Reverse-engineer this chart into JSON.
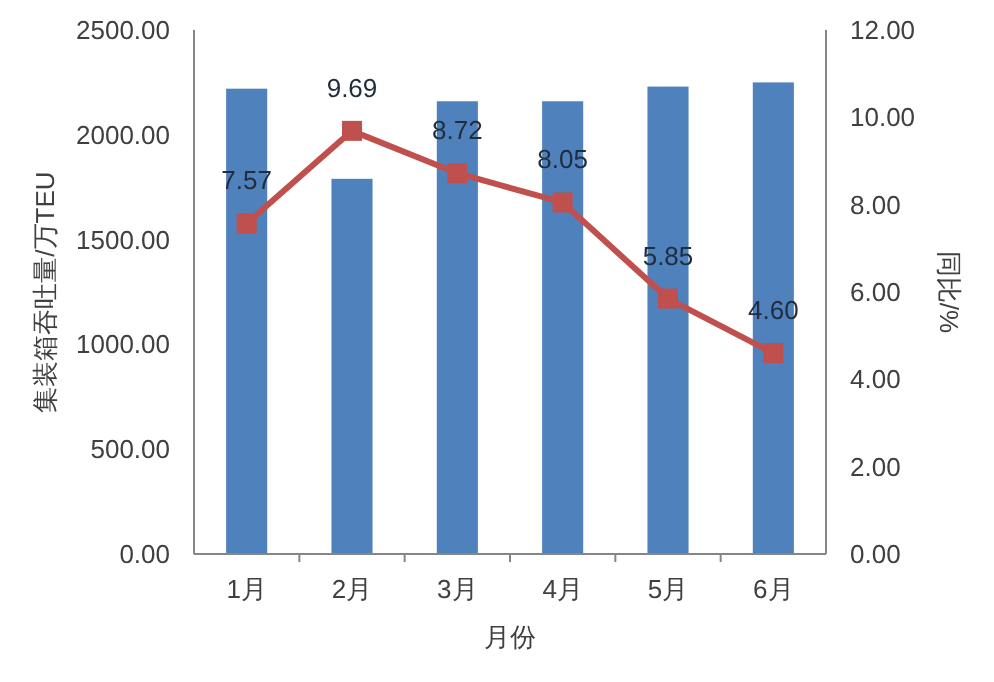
{
  "chart_data": {
    "type": "bar",
    "xlabel": "月份",
    "ylabel": "集装箱吞吐量/万TEU",
    "y2label": "同比/%",
    "categories": [
      "1月",
      "2月",
      "3月",
      "4月",
      "5月",
      "6月"
    ],
    "series": [
      {
        "color": "#4f81bd",
        "values": [
          2220,
          1790,
          2160,
          2160,
          2230,
          2250
        ]
      },
      {
        "type": "line",
        "axis": "y2",
        "color": "#c0504d",
        "marker": "square",
        "values": [
          7.57,
          9.69,
          8.72,
          8.05,
          5.85,
          4.6
        ],
        "value_labels": [
          "7.57",
          "9.69",
          "8.72",
          "8.05",
          "5.85",
          "4.60"
        ]
      }
    ],
    "ylim": [
      0,
      2500
    ],
    "yticks": [
      {
        "value": 0,
        "label": "0.00"
      },
      {
        "value": 500,
        "label": "500.00"
      },
      {
        "value": 1000,
        "label": "1000.00"
      },
      {
        "value": 1500,
        "label": "1500.00"
      },
      {
        "value": 2000,
        "label": "2000.00"
      },
      {
        "value": 2500,
        "label": "2500.00"
      }
    ],
    "y2lim": [
      0,
      12
    ],
    "y2ticks": [
      {
        "value": 0,
        "label": "0.00"
      },
      {
        "value": 2,
        "label": "2.00"
      },
      {
        "value": 4,
        "label": "4.00"
      },
      {
        "value": 6,
        "label": "6.00"
      },
      {
        "value": 8,
        "label": "8.00"
      },
      {
        "value": 10,
        "label": "10.00"
      },
      {
        "value": 12,
        "label": "12.00"
      }
    ],
    "grid": false
  }
}
